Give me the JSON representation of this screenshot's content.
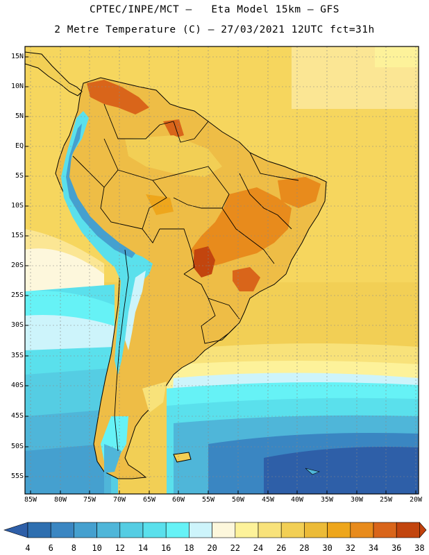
{
  "header": {
    "line1": "CPTEC/INPE/MCT –   Eta Model 15km – GFS",
    "line2": "2 Metre Temperature (C) – 27/03/2021 12UTC fct=31h"
  },
  "axes": {
    "lat_labels": [
      "15N",
      "10N",
      "5N",
      "EQ",
      "5S",
      "10S",
      "15S",
      "20S",
      "25S",
      "30S",
      "35S",
      "40S",
      "45S",
      "50S",
      "55S"
    ],
    "lon_labels": [
      "85W",
      "80W",
      "75W",
      "70W",
      "65W",
      "60W",
      "55W",
      "50W",
      "45W",
      "40W",
      "35W",
      "30W",
      "25W",
      "20W"
    ]
  },
  "colorbar": {
    "labels": [
      "4",
      "6",
      "8",
      "10",
      "12",
      "14",
      "16",
      "18",
      "20",
      "22",
      "24",
      "26",
      "28",
      "30",
      "32",
      "34",
      "36",
      "38"
    ],
    "low_color": "#2e5fa8",
    "high_color": "#c2410c",
    "colors": [
      "#2e6fb0",
      "#3a86c2",
      "#45a0cf",
      "#4fb6d9",
      "#55cde3",
      "#5ae0ec",
      "#66f2f6",
      "#cdf4fb",
      "#fdf7dc",
      "#fdf29a",
      "#f8e27a",
      "#f2cf55",
      "#ecbb38",
      "#eea61c",
      "#e88b1c",
      "#d9651a",
      "#c2450e"
    ]
  }
}
